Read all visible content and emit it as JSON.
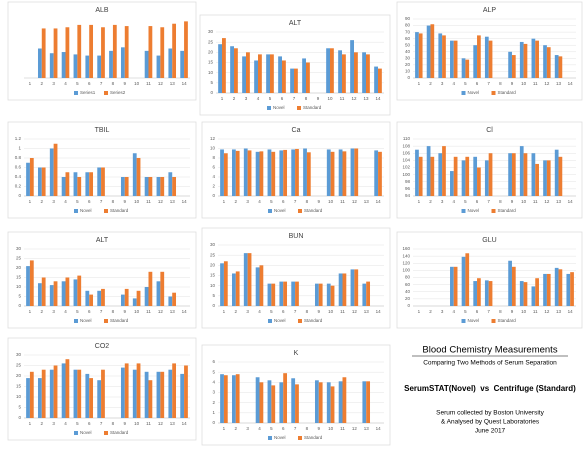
{
  "chart_data": [
    {
      "type": "bar",
      "title": "ALB",
      "categories": [
        "1",
        "2",
        "3",
        "4",
        "5",
        "6",
        "7",
        "8",
        "9",
        "10",
        "11",
        "12",
        "13",
        "14"
      ],
      "ylim": [
        0,
        5
      ],
      "grid": true,
      "series": [
        {
          "name": "Series1",
          "color": "#5b9bd5",
          "values": [
            null,
            2.5,
            2.1,
            2.2,
            2.0,
            1.9,
            1.9,
            2.3,
            2.6,
            null,
            2.3,
            1.9,
            2.5,
            2.3
          ]
        },
        {
          "name": "Series2",
          "color": "#ed7d31",
          "values": [
            null,
            4.2,
            4.2,
            4.3,
            4.5,
            4.5,
            4.3,
            4.5,
            4.4,
            null,
            4.4,
            4.3,
            4.6,
            4.8
          ]
        }
      ]
    },
    {
      "type": "bar",
      "title": "ALT",
      "categories": [
        "1",
        "2",
        "3",
        "4",
        "5",
        "6",
        "7",
        "8",
        "9",
        "10",
        "11",
        "12",
        "13",
        "14"
      ],
      "ylim": [
        0,
        30
      ],
      "yticks": [
        0,
        5,
        10,
        15,
        20,
        25,
        30
      ],
      "grid": true,
      "series": [
        {
          "name": "Novel",
          "color": "#5b9bd5",
          "values": [
            24,
            23,
            18,
            16,
            19,
            18,
            12,
            17,
            null,
            22,
            21,
            26,
            20,
            13
          ]
        },
        {
          "name": "Standard",
          "color": "#ed7d31",
          "values": [
            27,
            22,
            20,
            19,
            19,
            16,
            12,
            15,
            null,
            22,
            19,
            20,
            19,
            12
          ]
        }
      ]
    },
    {
      "type": "bar",
      "title": "ALP",
      "categories": [
        "1",
        "2",
        "3",
        "4",
        "5",
        "6",
        "7",
        "8",
        "9",
        "10",
        "11",
        "12",
        "13",
        "14"
      ],
      "ylim": [
        0,
        90
      ],
      "yticks": [
        0,
        10,
        20,
        30,
        40,
        50,
        60,
        70,
        80,
        90
      ],
      "grid": true,
      "series": [
        {
          "name": "Novel",
          "color": "#5b9bd5",
          "values": [
            70,
            80,
            68,
            57,
            30,
            50,
            63,
            null,
            40,
            55,
            60,
            50,
            35,
            null
          ]
        },
        {
          "name": "Standard",
          "color": "#ed7d31",
          "values": [
            68,
            82,
            65,
            57,
            28,
            65,
            57,
            null,
            35,
            52,
            57,
            47,
            33,
            null
          ]
        }
      ]
    },
    {
      "type": "bar",
      "title": "TBIL",
      "categories": [
        "1",
        "2",
        "3",
        "4",
        "5",
        "6",
        "7",
        "8",
        "9",
        "10",
        "11",
        "12",
        "13",
        "14"
      ],
      "ylim": [
        0,
        1.2
      ],
      "yticks": [
        0,
        0.2,
        0.4,
        0.6,
        0.8,
        1,
        1.2
      ],
      "grid": true,
      "series": [
        {
          "name": "Novel",
          "color": "#5b9bd5",
          "values": [
            0.7,
            0.6,
            1.0,
            0.4,
            0.5,
            0.5,
            0.6,
            null,
            0.4,
            0.9,
            0.4,
            0.4,
            0.5,
            null
          ]
        },
        {
          "name": "Standard",
          "color": "#ed7d31",
          "values": [
            0.8,
            0.6,
            1.1,
            0.5,
            0.4,
            0.5,
            0.6,
            null,
            0.4,
            0.8,
            0.4,
            0.4,
            0.4,
            null
          ]
        }
      ]
    },
    {
      "type": "bar",
      "title": "Ca",
      "categories": [
        "1",
        "2",
        "3",
        "4",
        "5",
        "6",
        "7",
        "8",
        "9",
        "10",
        "11",
        "12",
        "13",
        "14"
      ],
      "ylim": [
        0,
        12
      ],
      "yticks": [
        0,
        2,
        4,
        6,
        8,
        10,
        12
      ],
      "grid": true,
      "series": [
        {
          "name": "Novel",
          "color": "#5b9bd5",
          "values": [
            9.8,
            9.8,
            10,
            9.3,
            9.8,
            9.6,
            9.8,
            10,
            null,
            9.8,
            9.8,
            10,
            null,
            9.6
          ]
        },
        {
          "name": "Standard",
          "color": "#ed7d31",
          "values": [
            9.0,
            9.5,
            9.6,
            9.4,
            9.3,
            9.7,
            9.9,
            9.2,
            null,
            9.3,
            9.4,
            10,
            null,
            9.3
          ]
        }
      ]
    },
    {
      "type": "bar",
      "title": "Cl",
      "categories": [
        "1",
        "2",
        "3",
        "4",
        "5",
        "6",
        "7",
        "8",
        "9",
        "10",
        "11",
        "12",
        "13",
        "14"
      ],
      "ylim": [
        94,
        110
      ],
      "yticks": [
        94,
        96,
        98,
        100,
        102,
        104,
        106,
        108,
        110
      ],
      "grid": true,
      "series": [
        {
          "name": "Novel",
          "color": "#5b9bd5",
          "values": [
            107,
            108,
            106,
            101,
            104,
            105,
            104,
            null,
            106,
            108,
            106,
            104,
            107,
            null
          ]
        },
        {
          "name": "Standard",
          "color": "#ed7d31",
          "values": [
            105,
            105,
            108,
            105,
            105,
            102,
            106,
            null,
            106,
            106,
            103,
            104,
            105,
            null
          ]
        }
      ]
    },
    {
      "type": "bar",
      "title": "ALT",
      "categories": [
        "1",
        "2",
        "3",
        "4",
        "5",
        "6",
        "7",
        "8",
        "9",
        "10",
        "11",
        "12",
        "13",
        "14"
      ],
      "ylim": [
        0,
        30
      ],
      "yticks": [
        0,
        5,
        10,
        15,
        20,
        25,
        30
      ],
      "grid": true,
      "series": [
        {
          "name": "Novel",
          "color": "#5b9bd5",
          "values": [
            21,
            12,
            11,
            13,
            14,
            8,
            8,
            null,
            6,
            4,
            10,
            13,
            5,
            null
          ]
        },
        {
          "name": "Standard",
          "color": "#ed7d31",
          "values": [
            24,
            15,
            13,
            15,
            16,
            6,
            9,
            null,
            9,
            8,
            18,
            18,
            7,
            null
          ]
        }
      ]
    },
    {
      "type": "bar",
      "title": "BUN",
      "categories": [
        "1",
        "2",
        "3",
        "4",
        "5",
        "6",
        "7",
        "8",
        "9",
        "10",
        "11",
        "12",
        "13",
        "14"
      ],
      "ylim": [
        0,
        30
      ],
      "yticks": [
        0,
        5,
        10,
        15,
        20,
        25,
        30
      ],
      "grid": true,
      "series": [
        {
          "name": "Novel",
          "color": "#5b9bd5",
          "values": [
            21,
            16,
            26,
            19,
            11,
            12,
            12,
            null,
            11,
            11,
            16,
            18,
            11,
            null
          ]
        },
        {
          "name": "Standard",
          "color": "#ed7d31",
          "values": [
            22,
            17,
            26,
            20,
            11,
            12,
            12,
            null,
            11,
            10,
            16,
            18,
            12,
            null
          ]
        }
      ]
    },
    {
      "type": "bar",
      "title": "GLU",
      "categories": [
        "1",
        "2",
        "3",
        "4",
        "5",
        "6",
        "7",
        "8",
        "9",
        "10",
        "11",
        "12",
        "13",
        "14"
      ],
      "ylim": [
        0,
        160
      ],
      "yticks": [
        0,
        20,
        40,
        60,
        80,
        100,
        120,
        140,
        160
      ],
      "grid": true,
      "series": [
        {
          "name": "Novel",
          "color": "#5b9bd5",
          "values": [
            null,
            null,
            null,
            110,
            138,
            70,
            72,
            null,
            127,
            70,
            55,
            90,
            107,
            90
          ]
        },
        {
          "name": "Standard",
          "color": "#ed7d31",
          "values": [
            null,
            null,
            null,
            110,
            148,
            78,
            70,
            null,
            110,
            67,
            78,
            90,
            103,
            95
          ]
        }
      ]
    },
    {
      "type": "bar",
      "title": "CO2",
      "categories": [
        "1",
        "2",
        "3",
        "4",
        "5",
        "6",
        "7",
        "8",
        "9",
        "10",
        "11",
        "12",
        "13",
        "14"
      ],
      "ylim": [
        0,
        30
      ],
      "yticks": [
        0,
        5,
        10,
        15,
        20,
        25,
        30
      ],
      "grid": true,
      "series": [
        {
          "name": "Novel",
          "color": "#5b9bd5",
          "values": [
            19,
            19,
            23,
            26,
            23,
            21,
            18,
            null,
            24,
            23,
            22,
            22,
            23,
            21
          ]
        },
        {
          "name": "Standard",
          "color": "#ed7d31",
          "values": [
            22,
            23,
            25,
            28,
            23,
            19,
            23,
            null,
            26,
            26,
            18,
            22,
            26,
            25
          ]
        }
      ]
    },
    {
      "type": "bar",
      "title": "K",
      "categories": [
        "1",
        "2",
        "3",
        "4",
        "5",
        "6",
        "7",
        "8",
        "9",
        "10",
        "11",
        "12",
        "13",
        "14"
      ],
      "ylim": [
        0,
        6
      ],
      "yticks": [
        0,
        1,
        2,
        3,
        4,
        5,
        6
      ],
      "grid": true,
      "series": [
        {
          "name": "Novel",
          "color": "#5b9bd5",
          "values": [
            4.8,
            4.7,
            null,
            4.5,
            4.2,
            4.0,
            4.4,
            null,
            4.2,
            4.0,
            4.1,
            null,
            4.1,
            null
          ]
        },
        {
          "name": "Standard",
          "color": "#ed7d31",
          "values": [
            4.7,
            4.8,
            null,
            4.0,
            3.7,
            4.9,
            3.8,
            null,
            4.0,
            3.6,
            4.5,
            null,
            4.1,
            null
          ]
        }
      ]
    }
  ],
  "notes": {
    "title": "Blood Chemistry Measurements",
    "subtitle": "Comparing Two Methods of Serum Separation",
    "comparison": "SerumSTAT(Novel)  vs  Centrifuge (Standard)",
    "credit1": "Serum collected by Boston University",
    "credit2": "& Analysed by Quest Laboratories",
    "date": "June 2017"
  }
}
